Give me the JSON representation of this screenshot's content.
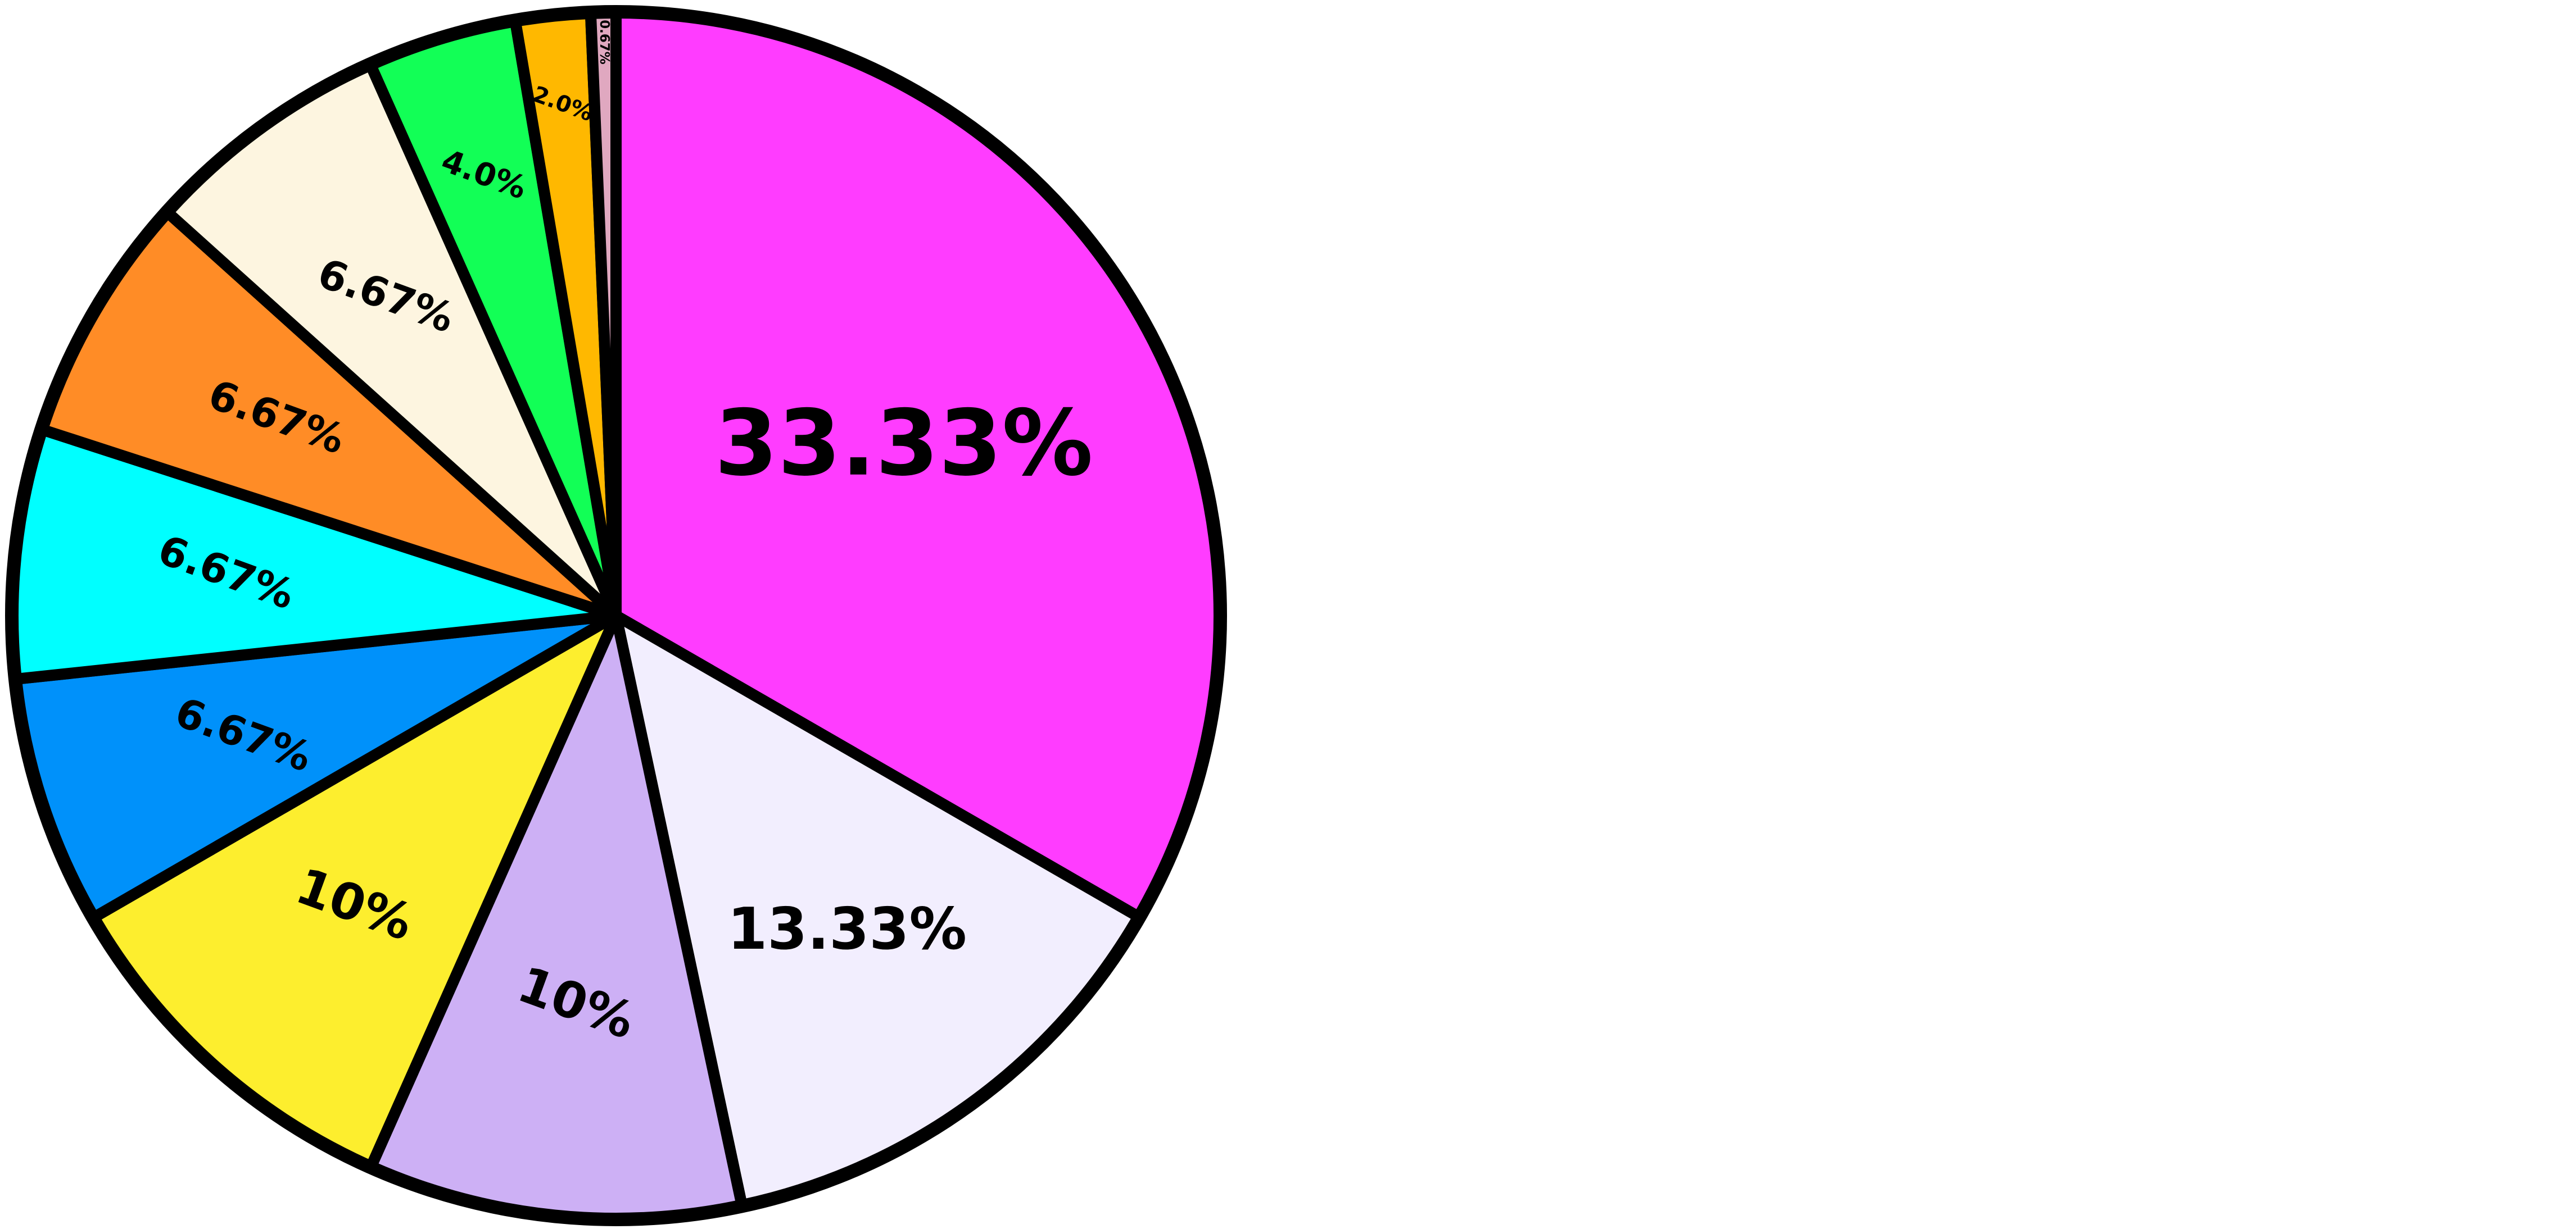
{
  "chart_data": {
    "type": "pie",
    "values": [
      33.33,
      13.33,
      10,
      10,
      6.67,
      6.67,
      6.67,
      6.67,
      4,
      2,
      0.67
    ],
    "value_labels": [
      "33.33%",
      "13.33%",
      "10%",
      "10%",
      "6.67%",
      "6.67%",
      "6.67%",
      "6.67%",
      "4.0%",
      "2.0%",
      "0.67%"
    ],
    "colors": [
      "#ff3cff",
      "#f2eefe",
      "#cdb0f5",
      "#fdee2e",
      "#0091fa",
      "#00ffff",
      "#ff8c26",
      "#fdf5e0",
      "#12ff56",
      "#ffb800",
      "#e0a8c0"
    ]
  }
}
